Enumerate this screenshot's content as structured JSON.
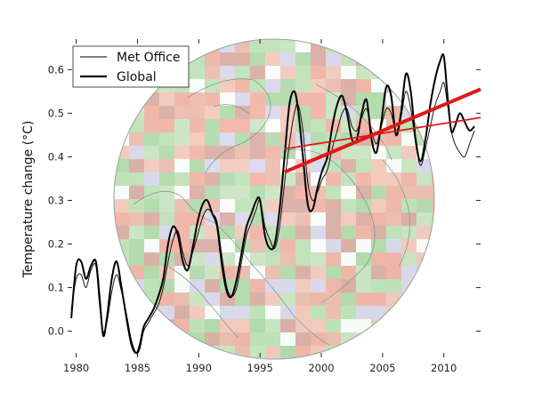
{
  "chart_data": {
    "type": "line",
    "title": "",
    "xlabel": "",
    "ylabel": "Temperature change (°C)",
    "xlim": [
      1979.3,
      2013.0
    ],
    "ylim": [
      -0.06,
      0.67
    ],
    "xticks": [
      1980,
      1985,
      1990,
      1995,
      2000,
      2005,
      2010
    ],
    "yticks": [
      0.0,
      0.1,
      0.2,
      0.3,
      0.4,
      0.5,
      0.6
    ],
    "grid": false,
    "legend_position": "top-left",
    "background": "temperature-anomaly globe map",
    "series": [
      {
        "name": "Met Office",
        "color": "#000000",
        "style": "thin",
        "x": [
          1979.6,
          1980.0,
          1980.4,
          1980.8,
          1981.2,
          1981.6,
          1981.9,
          1982.2,
          1982.5,
          1982.9,
          1983.3,
          1983.7,
          1984.1,
          1984.5,
          1984.9,
          1985.2,
          1985.5,
          1985.9,
          1986.3,
          1986.7,
          1987.1,
          1987.5,
          1987.9,
          1988.3,
          1988.7,
          1989.1,
          1989.5,
          1989.9,
          1990.3,
          1990.7,
          1991.1,
          1991.5,
          1991.9,
          1992.3,
          1992.7,
          1993.1,
          1993.5,
          1993.9,
          1994.3,
          1994.7,
          1995.0,
          1995.4,
          1995.8,
          1996.2,
          1996.6,
          1997.0,
          1997.4,
          1997.8,
          1998.1,
          1998.5,
          1998.9,
          1999.3,
          1999.7,
          2000.1,
          2000.5,
          2000.9,
          2001.3,
          2001.7,
          2002.1,
          2002.5,
          2002.9,
          2003.3,
          2003.7,
          2004.1,
          2004.5,
          2004.9,
          2005.3,
          2005.7,
          2006.1,
          2006.5,
          2006.9,
          2007.3,
          2007.7,
          2008.1,
          2008.5,
          2008.9,
          2009.3,
          2009.7,
          2010.0,
          2010.3,
          2010.6,
          2010.9,
          2011.3,
          2011.7,
          2012.1,
          2012.5
        ],
        "y": [
          0.05,
          0.12,
          0.13,
          0.1,
          0.14,
          0.15,
          0.06,
          0.0,
          0.02,
          0.09,
          0.13,
          0.09,
          0.04,
          -0.02,
          -0.05,
          -0.04,
          0.0,
          0.02,
          0.04,
          0.06,
          0.1,
          0.16,
          0.21,
          0.23,
          0.18,
          0.15,
          0.18,
          0.22,
          0.26,
          0.28,
          0.27,
          0.25,
          0.17,
          0.1,
          0.08,
          0.1,
          0.16,
          0.22,
          0.25,
          0.28,
          0.3,
          0.24,
          0.21,
          0.19,
          0.24,
          0.34,
          0.43,
          0.5,
          0.52,
          0.46,
          0.34,
          0.3,
          0.32,
          0.35,
          0.37,
          0.42,
          0.46,
          0.5,
          0.51,
          0.47,
          0.46,
          0.49,
          0.51,
          0.46,
          0.43,
          0.47,
          0.51,
          0.5,
          0.46,
          0.49,
          0.55,
          0.51,
          0.43,
          0.38,
          0.42,
          0.47,
          0.52,
          0.55,
          0.57,
          0.52,
          0.46,
          0.43,
          0.41,
          0.4,
          0.43,
          0.46
        ]
      },
      {
        "name": "Global",
        "color": "#000000",
        "style": "thick",
        "x": [
          1979.6,
          1980.0,
          1980.4,
          1980.8,
          1981.2,
          1981.6,
          1981.9,
          1982.2,
          1982.5,
          1982.9,
          1983.3,
          1983.7,
          1984.1,
          1984.5,
          1984.9,
          1985.2,
          1985.5,
          1985.9,
          1986.3,
          1986.7,
          1987.1,
          1987.5,
          1987.9,
          1988.3,
          1988.7,
          1989.1,
          1989.5,
          1989.9,
          1990.3,
          1990.7,
          1991.1,
          1991.5,
          1991.9,
          1992.3,
          1992.7,
          1993.1,
          1993.5,
          1993.9,
          1994.3,
          1994.7,
          1995.0,
          1995.4,
          1995.8,
          1996.2,
          1996.6,
          1997.0,
          1997.4,
          1997.8,
          1998.1,
          1998.5,
          1998.9,
          1999.3,
          1999.7,
          2000.1,
          2000.5,
          2000.9,
          2001.3,
          2001.7,
          2002.1,
          2002.5,
          2002.9,
          2003.3,
          2003.7,
          2004.1,
          2004.5,
          2004.9,
          2005.3,
          2005.7,
          2006.1,
          2006.5,
          2006.9,
          2007.3,
          2007.7,
          2008.1,
          2008.5,
          2008.9,
          2009.3,
          2009.7,
          2010.0,
          2010.3,
          2010.6,
          2010.9,
          2011.3,
          2011.7,
          2012.1,
          2012.5
        ],
        "y": [
          0.03,
          0.15,
          0.16,
          0.12,
          0.15,
          0.16,
          0.08,
          -0.01,
          0.03,
          0.12,
          0.16,
          0.1,
          0.03,
          -0.03,
          -0.05,
          -0.03,
          0.01,
          0.03,
          0.05,
          0.08,
          0.12,
          0.2,
          0.24,
          0.22,
          0.16,
          0.14,
          0.19,
          0.25,
          0.29,
          0.3,
          0.27,
          0.24,
          0.15,
          0.09,
          0.08,
          0.12,
          0.18,
          0.24,
          0.27,
          0.3,
          0.3,
          0.22,
          0.19,
          0.2,
          0.28,
          0.4,
          0.52,
          0.55,
          0.51,
          0.4,
          0.29,
          0.28,
          0.33,
          0.37,
          0.4,
          0.47,
          0.52,
          0.54,
          0.5,
          0.44,
          0.44,
          0.5,
          0.53,
          0.44,
          0.41,
          0.48,
          0.56,
          0.54,
          0.45,
          0.5,
          0.59,
          0.55,
          0.44,
          0.39,
          0.44,
          0.52,
          0.58,
          0.62,
          0.63,
          0.54,
          0.46,
          0.47,
          0.5,
          0.48,
          0.46,
          0.47
        ]
      }
    ],
    "trend_lines": [
      {
        "color": "#dd1a1a",
        "width": "thick",
        "x": [
          1997.0,
          2013.0
        ],
        "y": [
          0.365,
          0.555
        ]
      },
      {
        "color": "#dd1a1a",
        "width": "thin",
        "x": [
          1997.0,
          2013.0
        ],
        "y": [
          0.418,
          0.49
        ]
      }
    ]
  },
  "legend": {
    "items": [
      {
        "label": "Met Office",
        "style": "thin"
      },
      {
        "label": "Global",
        "style": "thick"
      }
    ]
  }
}
